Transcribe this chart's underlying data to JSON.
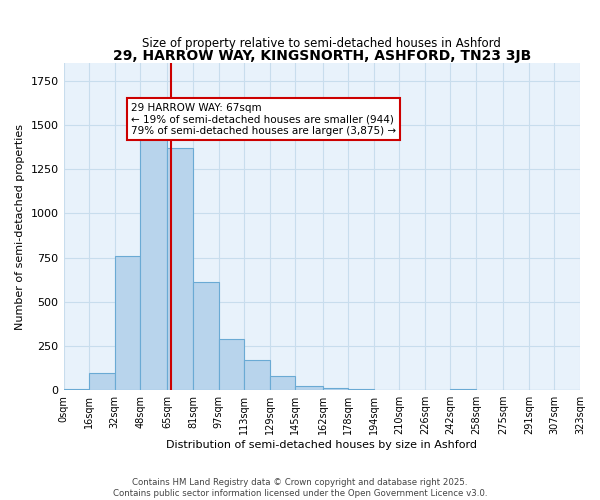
{
  "title": "29, HARROW WAY, KINGSNORTH, ASHFORD, TN23 3JB",
  "subtitle": "Size of property relative to semi-detached houses in Ashford",
  "xlabel": "Distribution of semi-detached houses by size in Ashford",
  "ylabel": "Number of semi-detached properties",
  "bin_labels": [
    "0sqm",
    "16sqm",
    "32sqm",
    "48sqm",
    "65sqm",
    "81sqm",
    "97sqm",
    "113sqm",
    "129sqm",
    "145sqm",
    "162sqm",
    "178sqm",
    "194sqm",
    "210sqm",
    "226sqm",
    "242sqm",
    "258sqm",
    "275sqm",
    "291sqm",
    "307sqm",
    "323sqm"
  ],
  "bar_values": [
    5,
    95,
    760,
    1450,
    1370,
    610,
    290,
    170,
    80,
    25,
    12,
    5,
    0,
    0,
    0,
    5,
    0,
    0,
    0,
    0
  ],
  "bar_color": "#b8d4ec",
  "bar_edge_color": "#6aaad4",
  "grid_color": "#c8dded",
  "background_color": "#e8f2fb",
  "property_line_x": 67,
  "annotation_text": "29 HARROW WAY: 67sqm\n← 19% of semi-detached houses are smaller (944)\n79% of semi-detached houses are larger (3,875) →",
  "annotation_box_color": "#ffffff",
  "annotation_border_color": "#cc0000",
  "vline_color": "#cc0000",
  "footer_text": "Contains HM Land Registry data © Crown copyright and database right 2025.\nContains public sector information licensed under the Open Government Licence v3.0.",
  "ylim": [
    0,
    1850
  ],
  "bin_edges": [
    0,
    16,
    32,
    48,
    65,
    81,
    97,
    113,
    129,
    145,
    162,
    178,
    194,
    210,
    226,
    242,
    258,
    275,
    291,
    307,
    323
  ]
}
